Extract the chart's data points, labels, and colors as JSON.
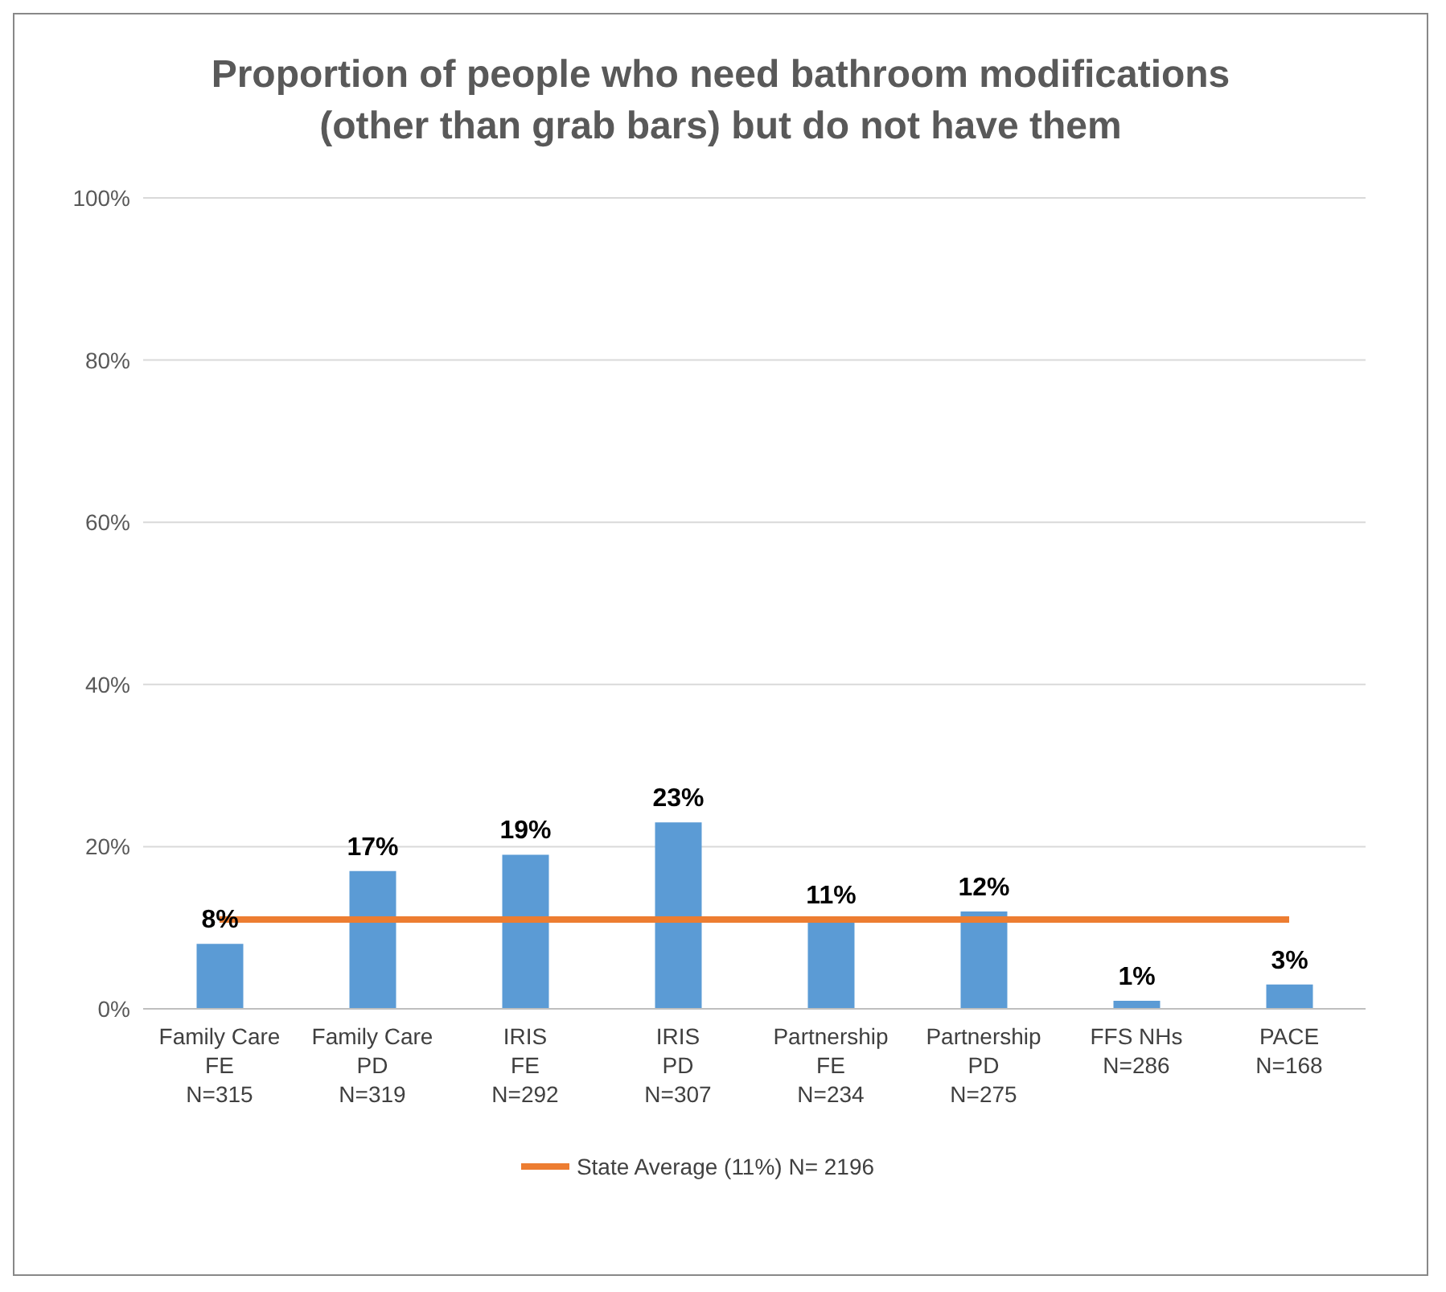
{
  "chart_data": {
    "type": "bar",
    "title": "Proportion of people who need bathroom modifications (other than grab bars) but do not have them",
    "categories": [
      "Family Care\nFE\nN=315",
      "Family Care\nPD\nN=319",
      "IRIS\nFE\nN=292",
      "IRIS\nPD\nN=307",
      "Partnership\nFE\nN=234",
      "Partnership\nPD\nN=275",
      "FFS NHs\nN=286",
      "PACE\nN=168"
    ],
    "series": [
      {
        "color": "#5b9bd5",
        "values": [
          8,
          17,
          19,
          23,
          11,
          12,
          1,
          3
        ],
        "value_labels": [
          "8%",
          "17%",
          "19%",
          "23%",
          "11%",
          "12%",
          "1%",
          "3%"
        ]
      },
      {
        "type": "line",
        "name": "State Average (11%) N= 2196",
        "color": "#ed7d31",
        "values": [
          11,
          11,
          11,
          11,
          11,
          11,
          11,
          11
        ]
      }
    ],
    "ylim": [
      0,
      100
    ],
    "yticks": [
      {
        "value": 0,
        "label": "0%"
      },
      {
        "value": 20,
        "label": "20%"
      },
      {
        "value": 40,
        "label": "40%"
      },
      {
        "value": 60,
        "label": "60%"
      },
      {
        "value": 80,
        "label": "80%"
      },
      {
        "value": 100,
        "label": "100%"
      }
    ],
    "grid": "y",
    "legend": "bottom",
    "marker": "none"
  }
}
